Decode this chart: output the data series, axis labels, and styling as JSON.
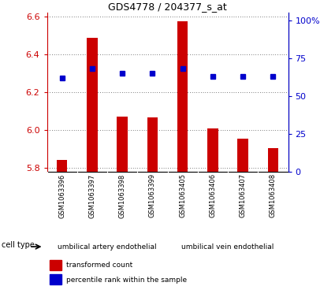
{
  "title": "GDS4778 / 204377_s_at",
  "samples": [
    "GSM1063396",
    "GSM1063397",
    "GSM1063398",
    "GSM1063399",
    "GSM1063405",
    "GSM1063406",
    "GSM1063407",
    "GSM1063408"
  ],
  "transformed_count": [
    5.84,
    6.49,
    6.07,
    6.065,
    6.575,
    6.01,
    5.955,
    5.905
  ],
  "percentile_rank": [
    62,
    68,
    65,
    65,
    68,
    63,
    63,
    63
  ],
  "bar_color": "#cc0000",
  "dot_color": "#0000cc",
  "ylim_left": [
    5.78,
    6.62
  ],
  "yticks_left": [
    5.8,
    6.0,
    6.2,
    6.4,
    6.6
  ],
  "yticks_right": [
    0,
    25,
    50,
    75,
    100
  ],
  "ylim_right": [
    0,
    105
  ],
  "left_axis_color": "#cc0000",
  "right_axis_color": "#0000cc",
  "legend_labels": [
    "transformed count",
    "percentile rank within the sample"
  ],
  "legend_colors": [
    "#cc0000",
    "#0000cc"
  ],
  "tick_label_area_color": "#d3d3d3",
  "cell_type_area_color": "#90ee90",
  "cell_type_label": "cell type",
  "group_labels": [
    "umbilical artery endothelial",
    "umbilical vein endothelial"
  ],
  "group_boundaries": [
    0,
    4,
    8
  ]
}
